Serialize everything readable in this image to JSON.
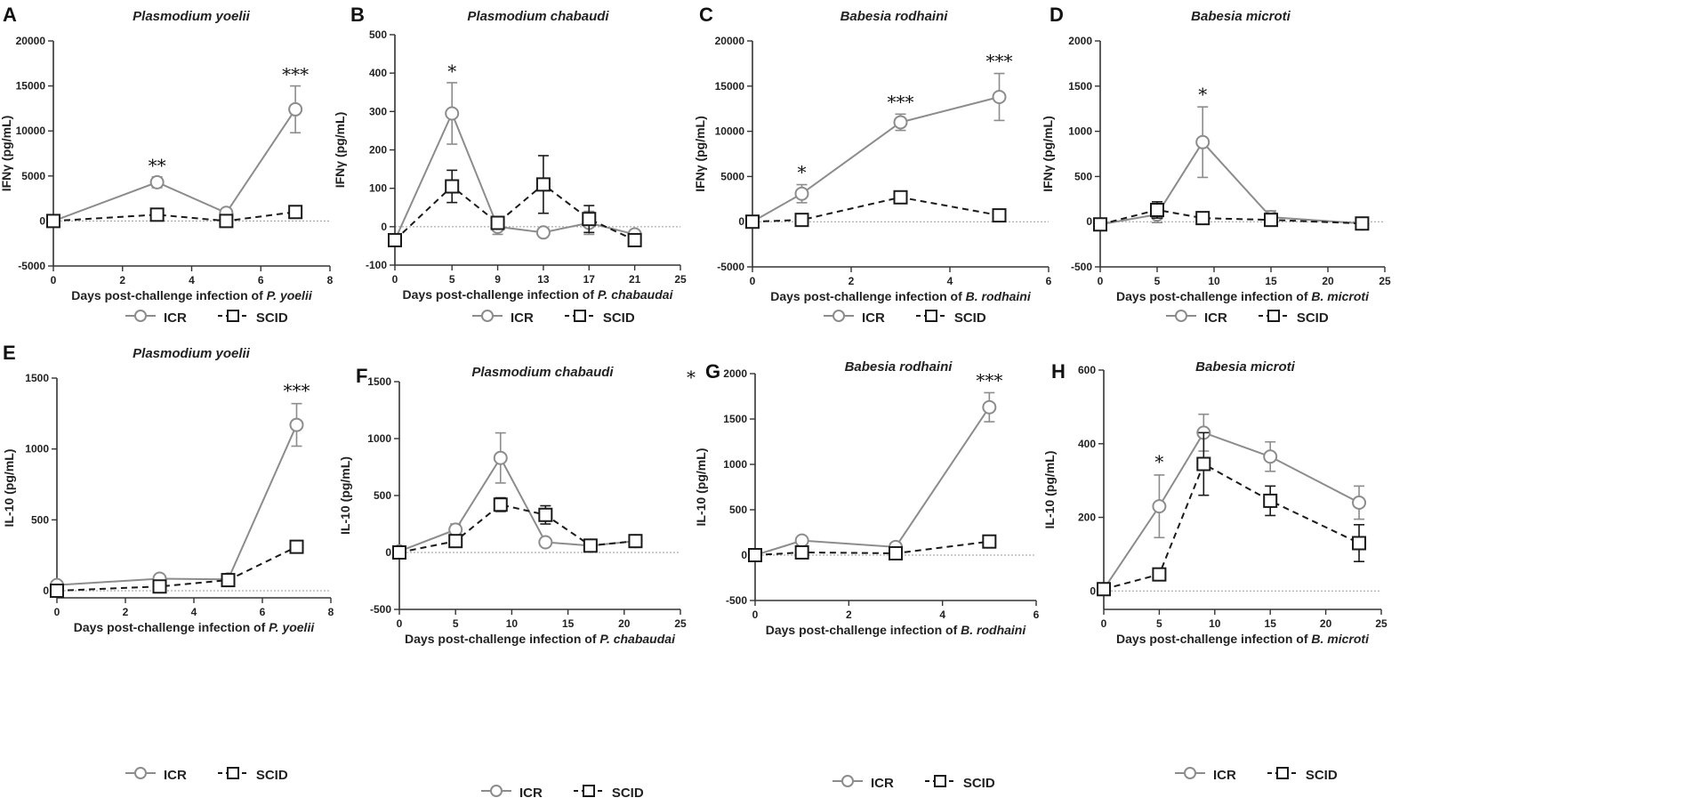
{
  "colors": {
    "icr": "#8c8c8c",
    "scid": "#1a1a1a",
    "axis": "#333333",
    "zero_line": "#9a9a9a"
  },
  "legend": {
    "icr": "ICR",
    "scid": "SCID"
  },
  "stray_marks": {
    "F": "*"
  },
  "chart_data": [
    {
      "panel": "A",
      "type": "line",
      "title": "Plasmodium yoelii",
      "xlabel": "Days post-challenge infection of P. yoelii",
      "xlabel_plain": "Days post-challenge infection of ",
      "xlabel_italic": "P. yoelii",
      "ylabel": "IFNγ (pg/mL)",
      "xlim": [
        0,
        8
      ],
      "ylim": [
        -5000,
        20000
      ],
      "xticks": [
        0,
        2,
        4,
        6,
        8
      ],
      "yticks": [
        -5000,
        0,
        5000,
        10000,
        15000,
        20000
      ],
      "series": [
        {
          "name": "ICR",
          "x": [
            0,
            3,
            5,
            7
          ],
          "y": [
            0,
            4300,
            900,
            12400
          ],
          "err": [
            0,
            600,
            300,
            2600
          ]
        },
        {
          "name": "SCID",
          "x": [
            0,
            3,
            5,
            7
          ],
          "y": [
            0,
            700,
            0,
            1000
          ],
          "err": [
            0,
            200,
            0,
            200
          ]
        }
      ],
      "annotations": [
        {
          "x": 3,
          "y": 4900,
          "text": "**"
        },
        {
          "x": 7,
          "y": 15000,
          "text": "***"
        }
      ]
    },
    {
      "panel": "B",
      "type": "line",
      "title": "Plasmodium chabaudi",
      "xlabel": "Days post-challenge infection of P. chabaudai",
      "xlabel_plain": "Days post-challenge infection of ",
      "xlabel_italic": "P. chabaudai",
      "ylabel": "IFNγ (pg/mL)",
      "xlim": [
        0,
        25
      ],
      "ylim": [
        -100,
        500
      ],
      "xticks": [
        0,
        5,
        9,
        13,
        17,
        21,
        25
      ],
      "yticks": [
        -100,
        0,
        100,
        200,
        300,
        400,
        500
      ],
      "series": [
        {
          "name": "ICR",
          "x": [
            0,
            5,
            9,
            13,
            17,
            21
          ],
          "y": [
            -35,
            295,
            0,
            -15,
            10,
            -20
          ],
          "err": [
            0,
            80,
            20,
            5,
            30,
            5
          ]
        },
        {
          "name": "SCID",
          "x": [
            0,
            5,
            9,
            13,
            17,
            21
          ],
          "y": [
            -35,
            105,
            10,
            110,
            20,
            -35
          ],
          "err": [
            0,
            42,
            15,
            75,
            35,
            8
          ]
        }
      ],
      "annotations": [
        {
          "x": 5,
          "y": 375,
          "text": "*"
        }
      ]
    },
    {
      "panel": "C",
      "type": "line",
      "title": "Babesia rodhaini",
      "xlabel": "Days post-challenge infection of B. rodhaini",
      "xlabel_plain": "Days post-challenge infection of ",
      "xlabel_italic": "B. rodhaini",
      "ylabel": "IFNγ (pg/mL)",
      "xlim": [
        0,
        6
      ],
      "ylim": [
        -5000,
        20000
      ],
      "xticks": [
        0,
        2,
        4,
        6
      ],
      "yticks": [
        -5000,
        0,
        5000,
        10000,
        15000,
        20000
      ],
      "series": [
        {
          "name": "ICR",
          "x": [
            0,
            1,
            3,
            5
          ],
          "y": [
            0,
            3100,
            11000,
            13800
          ],
          "err": [
            0,
            1000,
            900,
            2600
          ]
        },
        {
          "name": "SCID",
          "x": [
            0,
            1,
            3,
            5
          ],
          "y": [
            0,
            200,
            2700,
            700
          ],
          "err": [
            0,
            100,
            600,
            200
          ]
        }
      ],
      "annotations": [
        {
          "x": 1,
          "y": 4200,
          "text": "*"
        },
        {
          "x": 3,
          "y": 12000,
          "text": "***"
        },
        {
          "x": 5,
          "y": 16500,
          "text": "***"
        }
      ]
    },
    {
      "panel": "D",
      "type": "line",
      "title": "Babesia microti",
      "xlabel": "Days post-challenge infection of B. microti",
      "xlabel_plain": "Days post-challenge infection of ",
      "xlabel_italic": "B. microti",
      "ylabel": "IFNγ (pg/mL)",
      "xlim": [
        0,
        25
      ],
      "ylim": [
        -500,
        2000
      ],
      "xticks": [
        0,
        5,
        10,
        15,
        20,
        25
      ],
      "yticks": [
        -500,
        0,
        500,
        1000,
        1500,
        2000
      ],
      "series": [
        {
          "name": "ICR",
          "x": [
            0,
            5,
            9,
            15,
            23
          ],
          "y": [
            -30,
            80,
            880,
            50,
            -20
          ],
          "err": [
            0,
            90,
            390,
            70,
            20
          ]
        },
        {
          "name": "SCID",
          "x": [
            0,
            5,
            9,
            15,
            23
          ],
          "y": [
            -30,
            130,
            40,
            20,
            -20
          ],
          "err": [
            0,
            90,
            20,
            30,
            20
          ]
        }
      ],
      "annotations": [
        {
          "x": 9,
          "y": 1280,
          "text": "*"
        }
      ]
    },
    {
      "panel": "E",
      "type": "line",
      "title": "Plasmodium yoelii",
      "xlabel": "Days post-challenge infection of P. yoelii",
      "xlabel_plain": "Days post-challenge infection of ",
      "xlabel_italic": "P. yoelii",
      "ylabel": "IL-10 (pg/mL)",
      "xlim": [
        0,
        8
      ],
      "ylim": [
        -50,
        1500
      ],
      "xticks": [
        0,
        2,
        4,
        6,
        8
      ],
      "yticks": [
        0,
        500,
        1000,
        1500
      ],
      "series": [
        {
          "name": "ICR",
          "x": [
            0,
            3,
            5,
            7
          ],
          "y": [
            40,
            85,
            80,
            1170
          ],
          "err": [
            0,
            10,
            15,
            150
          ]
        },
        {
          "name": "SCID",
          "x": [
            0,
            3,
            5,
            7
          ],
          "y": [
            0,
            30,
            75,
            310
          ],
          "err": [
            0,
            5,
            20,
            20
          ]
        }
      ],
      "annotations": [
        {
          "x": 7,
          "y": 1330,
          "text": "***"
        }
      ]
    },
    {
      "panel": "F",
      "type": "line",
      "title": "Plasmodium chabaudi",
      "xlabel": "Days post-challenge infection of P. chabaudai",
      "xlabel_plain": "Days post-challenge infection of ",
      "xlabel_italic": "P. chabaudai",
      "ylabel": "IL-10 (pg/mL)",
      "xlim": [
        0,
        25
      ],
      "ylim": [
        -500,
        1500
      ],
      "xticks": [
        0,
        5,
        10,
        15,
        20,
        25
      ],
      "yticks": [
        -500,
        0,
        500,
        1000,
        1500
      ],
      "series": [
        {
          "name": "ICR",
          "x": [
            0,
            5,
            9,
            13,
            17,
            21
          ],
          "y": [
            10,
            200,
            830,
            90,
            60,
            100
          ],
          "err": [
            0,
            50,
            220,
            20,
            15,
            15
          ]
        },
        {
          "name": "SCID",
          "x": [
            0,
            5,
            9,
            13,
            17,
            21
          ],
          "y": [
            0,
            100,
            420,
            330,
            60,
            100
          ],
          "err": [
            0,
            20,
            60,
            80,
            20,
            20
          ]
        }
      ],
      "annotations": []
    },
    {
      "panel": "G",
      "type": "line",
      "title": "Babesia rodhaini",
      "xlabel": "Days post-challenge infection of B. rodhaini",
      "xlabel_plain": "Days post-challenge infection of ",
      "xlabel_italic": "B. rodhaini",
      "ylabel": "IL-10 (pg/mL)",
      "xlim": [
        0,
        6
      ],
      "ylim": [
        -500,
        2000
      ],
      "xticks": [
        0,
        2,
        4,
        6
      ],
      "yticks": [
        -500,
        0,
        500,
        1000,
        1500,
        2000
      ],
      "series": [
        {
          "name": "ICR",
          "x": [
            0,
            1,
            3,
            5
          ],
          "y": [
            0,
            160,
            90,
            1630
          ],
          "err": [
            0,
            20,
            20,
            160
          ]
        },
        {
          "name": "SCID",
          "x": [
            0,
            1,
            3,
            5
          ],
          "y": [
            0,
            30,
            20,
            150
          ],
          "err": [
            0,
            10,
            10,
            20
          ]
        }
      ],
      "annotations": [
        {
          "x": 5,
          "y": 1800,
          "text": "***"
        }
      ]
    },
    {
      "panel": "H",
      "type": "line",
      "title": "Babesia microti",
      "xlabel": "Days post-challenge infection of B. microti",
      "xlabel_plain": "Days post-challenge infection of ",
      "xlabel_italic": "B. microti",
      "ylabel": "IL-10 (pg/mL)",
      "xlim": [
        0,
        25
      ],
      "ylim": [
        -50,
        600
      ],
      "xticks": [
        0,
        5,
        10,
        15,
        20,
        25
      ],
      "yticks": [
        0,
        200,
        400,
        600
      ],
      "series": [
        {
          "name": "ICR",
          "x": [
            0,
            5,
            9,
            15,
            23
          ],
          "y": [
            5,
            230,
            430,
            365,
            240
          ],
          "err": [
            0,
            85,
            50,
            40,
            45
          ]
        },
        {
          "name": "SCID",
          "x": [
            0,
            5,
            9,
            15,
            23
          ],
          "y": [
            5,
            45,
            345,
            245,
            130
          ],
          "err": [
            0,
            15,
            85,
            40,
            50
          ]
        }
      ],
      "annotations": [
        {
          "x": 5,
          "y": 320,
          "text": "*"
        }
      ]
    }
  ]
}
